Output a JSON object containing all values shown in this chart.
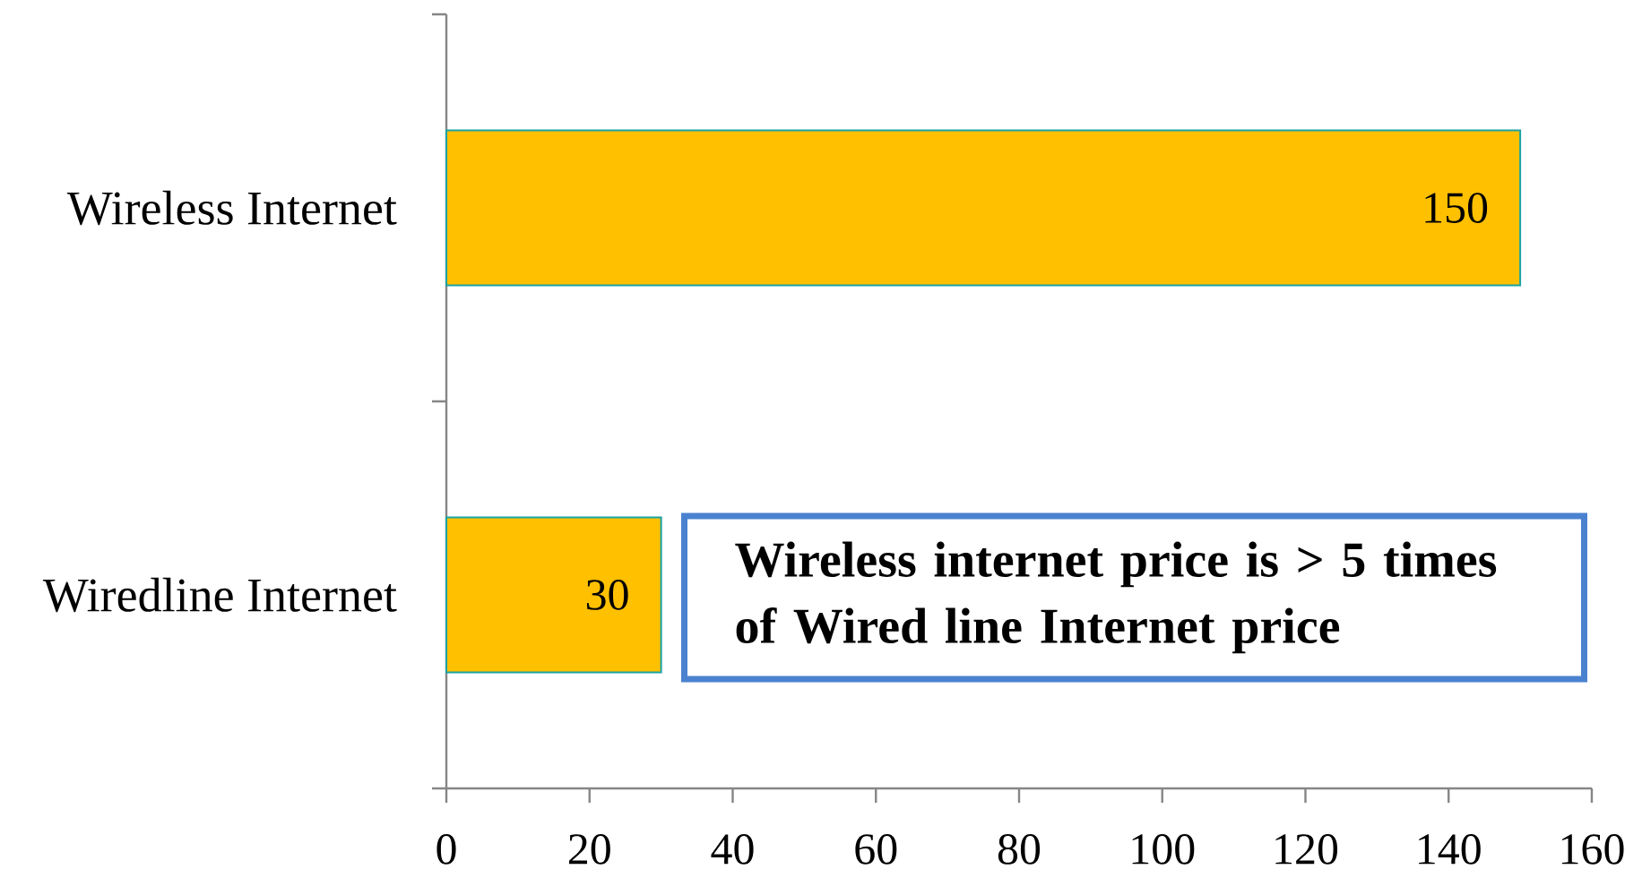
{
  "chart_data": {
    "type": "bar",
    "orientation": "horizontal",
    "categories": [
      "Wireless Internet",
      "Wiredline Internet"
    ],
    "values": [
      150,
      30
    ],
    "color": "#ffc000",
    "xlim": [
      0,
      160
    ],
    "xticks": [
      0,
      20,
      40,
      60,
      80,
      100,
      120,
      140,
      160
    ],
    "data_labels": true,
    "annotations": [
      "Wireless internet price is > 5 times of Wired line Internet price"
    ]
  }
}
